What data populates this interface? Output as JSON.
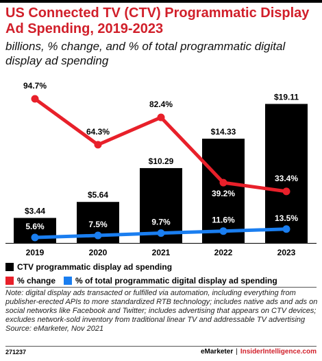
{
  "header": {
    "title": "US Connected TV (CTV) Programmatic Display Ad Spending, 2019-2023",
    "subtitle": "billions, % change, and % of total programmatic digital display ad spending"
  },
  "colors": {
    "bar": "#000000",
    "pct_change": "#e8202a",
    "pct_total": "#1a7ef0",
    "accent": "#d11f2a"
  },
  "legend": {
    "bars_label": "CTV programmatic display ad spending",
    "change_label": "% change",
    "total_label": "% of total programmatic digital display ad spending"
  },
  "chart_data": {
    "type": "bar",
    "categories": [
      "2019",
      "2020",
      "2021",
      "2022",
      "2023"
    ],
    "series": [
      {
        "name": "CTV programmatic display ad spending",
        "type": "bar",
        "values": [
          3.44,
          5.64,
          10.29,
          14.33,
          19.11
        ],
        "labels": [
          "$3.44",
          "$5.64",
          "$10.29",
          "$14.33",
          "$19.11"
        ]
      },
      {
        "name": "% change",
        "type": "line",
        "values": [
          94.7,
          64.3,
          82.4,
          39.2,
          33.4
        ],
        "labels": [
          "94.7%",
          "64.3%",
          "82.4%",
          "39.2%",
          "33.4%"
        ]
      },
      {
        "name": "% of total programmatic digital display ad spending",
        "type": "line",
        "values": [
          5.6,
          7.5,
          9.7,
          11.6,
          13.5
        ],
        "labels": [
          "5.6%",
          "7.5%",
          "9.7%",
          "11.6%",
          "13.5%"
        ]
      }
    ],
    "grid": false
  },
  "note": "Note: digital display ads transacted or fulfilled via automation, including everything from publisher-erected APIs to more standardized RTB technology; includes native ads and ads on social networks like Facebook and Twitter; includes advertising that appears on CTV devices; excludes network-sold inventory from traditional linear TV and addressable TV advertising",
  "source": "Source: eMarketer, Nov 2021",
  "footer": {
    "id": "271237",
    "brand": "eMarketer",
    "separator": "|",
    "brand2": "InsiderIntelligence.com"
  }
}
